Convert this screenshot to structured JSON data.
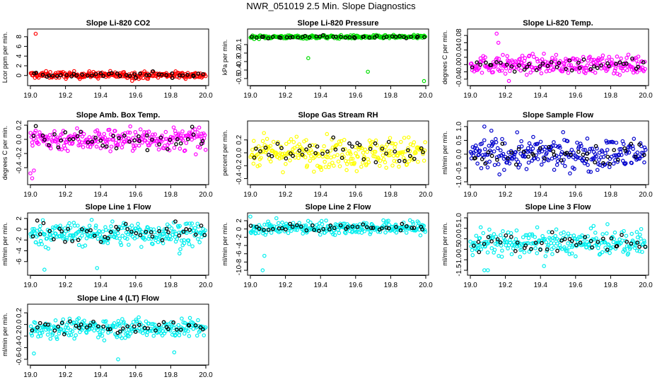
{
  "title": "NWR_051019  2.5 Min. Slope Diagnostics",
  "colors": {
    "axis": "#000000",
    "highlight": "#000000"
  },
  "chart_data": [
    {
      "type": "scatter",
      "title": "Slope Li-820 CO2",
      "ylabel": "Lcor ppm per min.",
      "color": "#ff0000",
      "xlim": [
        19.0,
        20.0
      ],
      "ylim": [
        -1.5,
        9
      ],
      "xticks": [
        19.0,
        19.2,
        19.4,
        19.6,
        19.8,
        20.0
      ],
      "xtick_labels": [
        "19.0",
        "19.2",
        "19.4",
        "19.6",
        "19.8",
        "20.0"
      ],
      "yticks": [
        0,
        2,
        4,
        6,
        8
      ],
      "ytick_labels": [
        "0",
        "2",
        "4",
        "6",
        "8"
      ],
      "mean": 0.1,
      "spread": 0.35,
      "outliers": [
        [
          19.03,
          8.6
        ],
        [
          19.58,
          -1.1
        ]
      ]
    },
    {
      "type": "scatter",
      "title": "Slope Li-820 Pressure",
      "ylabel": "kPa per min.",
      "color": "#00dd00",
      "xlim": [
        19.0,
        20.0
      ],
      "ylim": [
        -0.55,
        0.05
      ],
      "xticks": [
        19.0,
        19.2,
        19.4,
        19.6,
        19.8,
        20.0
      ],
      "xtick_labels": [
        "19.0",
        "19.2",
        "19.4",
        "19.6",
        "19.8",
        "20.0"
      ],
      "yticks": [
        -0.5,
        -0.4,
        -0.3,
        -0.2,
        -0.1
      ],
      "ytick_labels": [
        "-0.5",
        "-0.4",
        "-0.3",
        "-0.2",
        "-0.1"
      ],
      "mean": -0.01,
      "spread": 0.01,
      "outliers": [
        [
          19.33,
          -0.26
        ],
        [
          19.67,
          -0.42
        ],
        [
          19.99,
          -0.53
        ]
      ]
    },
    {
      "type": "scatter",
      "title": "Slope Li-820 Temp.",
      "ylabel": "degrees C per min.",
      "color": "#ff00ff",
      "xlim": [
        19.0,
        20.0
      ],
      "ylim": [
        -0.05,
        0.09
      ],
      "xticks": [
        19.0,
        19.2,
        19.4,
        19.6,
        19.8,
        20.0
      ],
      "xtick_labels": [
        "19.0",
        "19.2",
        "19.4",
        "19.6",
        "19.8",
        "20.0"
      ],
      "yticks": [
        -0.04,
        -0.02,
        0.0,
        0.02,
        0.04,
        0.06,
        0.08
      ],
      "ytick_labels": [
        "-0.04",
        "",
        "0.00",
        "",
        "0.04",
        "",
        "0.08"
      ],
      "mean": 0.0,
      "spread": 0.012,
      "outliers": [
        [
          19.15,
          0.085
        ],
        [
          19.16,
          0.06
        ],
        [
          19.2,
          -0.025
        ],
        [
          19.22,
          -0.045
        ],
        [
          19.93,
          -0.022
        ]
      ]
    },
    {
      "type": "scatter",
      "title": "Slope Amb. Box Temp.",
      "ylabel": "degrees C per min.",
      "color": "#ff00ff",
      "xlim": [
        19.0,
        20.0
      ],
      "ylim": [
        -0.6,
        0.22
      ],
      "xticks": [
        19.0,
        19.2,
        19.4,
        19.6,
        19.8,
        20.0
      ],
      "xtick_labels": [
        "19.0",
        "19.2",
        "19.4",
        "19.6",
        "19.8",
        "20.0"
      ],
      "yticks": [
        -0.4,
        -0.2,
        0.0,
        0.2
      ],
      "ytick_labels": [
        "-0.4",
        "-0.2",
        "0.0",
        "0.2"
      ],
      "mean": 0.0,
      "spread": 0.08,
      "outliers": [
        [
          19.01,
          -0.55
        ],
        [
          19.0,
          -0.48
        ],
        [
          19.02,
          -0.44
        ]
      ]
    },
    {
      "type": "scatter",
      "title": "Slope Gas Stream RH",
      "ylabel": "percent per min.",
      "color": "#ffff00",
      "xlim": [
        19.0,
        20.0
      ],
      "ylim": [
        -0.45,
        0.45
      ],
      "xticks": [
        19.0,
        19.2,
        19.4,
        19.6,
        19.8,
        20.0
      ],
      "xtick_labels": [
        "19.0",
        "19.2",
        "19.4",
        "19.6",
        "19.8",
        "20.0"
      ],
      "yticks": [
        -0.4,
        -0.2,
        0.0,
        0.2
      ],
      "ytick_labels": [
        "-0.4",
        "-0.2",
        "0.0",
        "0.2"
      ],
      "mean": 0.0,
      "spread": 0.12,
      "outliers": []
    },
    {
      "type": "scatter",
      "title": "Slope Sample Flow",
      "ylabel": "ml/min per min.",
      "color": "#0000cc",
      "xlim": [
        19.0,
        20.0
      ],
      "ylim": [
        -1.0,
        1.1
      ],
      "xticks": [
        19.0,
        19.2,
        19.4,
        19.6,
        19.8,
        20.0
      ],
      "xtick_labels": [
        "19.0",
        "19.2",
        "19.4",
        "19.6",
        "19.8",
        "20.0"
      ],
      "yticks": [
        -1.0,
        -0.5,
        0.0,
        0.5,
        1.0
      ],
      "ytick_labels": [
        "-1.0",
        "-0.5",
        "0.0",
        "0.5",
        "1.0"
      ],
      "mean": 0.0,
      "spread": 0.28,
      "outliers": [
        [
          19.08,
          1.0
        ],
        [
          19.12,
          0.85
        ]
      ]
    },
    {
      "type": "scatter",
      "title": "Slope Line 1 Flow",
      "ylabel": "ml/min per min.",
      "color": "#00eeee",
      "xlim": [
        19.0,
        20.0
      ],
      "ylim": [
        -8,
        2.5
      ],
      "xticks": [
        19.0,
        19.2,
        19.4,
        19.6,
        19.8,
        20.0
      ],
      "xtick_labels": [
        "19.0",
        "19.2",
        "19.4",
        "19.6",
        "19.8",
        "20.0"
      ],
      "yticks": [
        -6,
        -4,
        -2,
        0,
        2
      ],
      "ytick_labels": [
        "-6",
        "-4",
        "-2",
        "0",
        "2"
      ],
      "mean": -0.8,
      "spread": 1.1,
      "outliers": [
        [
          19.08,
          -7.5
        ],
        [
          19.38,
          -7.2
        ],
        [
          19.85,
          -4.5
        ]
      ]
    },
    {
      "type": "scatter",
      "title": "Slope Line 2 Flow",
      "ylabel": "ml/min per min.",
      "color": "#00eeee",
      "xlim": [
        19.0,
        20.0
      ],
      "ylim": [
        -10.5,
        3.2
      ],
      "xticks": [
        19.0,
        19.2,
        19.4,
        19.6,
        19.8,
        20.0
      ],
      "xtick_labels": [
        "19.0",
        "19.2",
        "19.4",
        "19.6",
        "19.8",
        "20.0"
      ],
      "yticks": [
        -10,
        -8,
        -6,
        -4,
        -2,
        0,
        2
      ],
      "ytick_labels": [
        "-10",
        "-8",
        "-6",
        "-4",
        "-2",
        "0",
        "2"
      ],
      "mean": 0.3,
      "spread": 0.8,
      "outliers": [
        [
          19.07,
          -10
        ],
        [
          19.08,
          -6.5
        ],
        [
          19.0,
          3
        ]
      ]
    },
    {
      "type": "scatter",
      "title": "Slope Line 3 Flow",
      "ylabel": "ml/min per min.",
      "color": "#00eeee",
      "xlim": [
        19.0,
        20.0
      ],
      "ylim": [
        -1.6,
        1.1
      ],
      "xticks": [
        19.0,
        19.2,
        19.4,
        19.6,
        19.8,
        20.0
      ],
      "xtick_labels": [
        "19.0",
        "19.2",
        "19.4",
        "19.6",
        "19.8",
        "20.0"
      ],
      "yticks": [
        -1.5,
        -1.0,
        -0.5,
        0.0,
        0.5,
        1.0
      ],
      "ytick_labels": [
        "-1.5",
        "-1.0",
        "-0.5",
        "0.0",
        "0.5",
        "1.0"
      ],
      "mean": -0.2,
      "spread": 0.3,
      "outliers": [
        [
          19.08,
          -1.5
        ],
        [
          19.1,
          -1.5
        ],
        [
          19.42,
          -1.3
        ]
      ]
    },
    {
      "type": "scatter",
      "title": "Slope Line 4 (LT) Flow",
      "ylabel": "ml/min per min.",
      "color": "#00eeee",
      "xlim": [
        19.0,
        20.0
      ],
      "ylim": [
        -0.65,
        0.3
      ],
      "xticks": [
        19.0,
        19.2,
        19.4,
        19.6,
        19.8,
        20.0
      ],
      "xtick_labels": [
        "19.0",
        "19.2",
        "19.4",
        "19.6",
        "19.8",
        "20.0"
      ],
      "yticks": [
        -0.6,
        -0.4,
        -0.2,
        0.0,
        0.2
      ],
      "ytick_labels": [
        "-0.6",
        "-0.4",
        "-0.2",
        "0.0",
        "0.2"
      ],
      "mean": -0.06,
      "spread": 0.08,
      "outliers": [
        [
          19.5,
          -0.6
        ],
        [
          19.02,
          -0.5
        ],
        [
          19.82,
          -0.48
        ]
      ]
    }
  ]
}
